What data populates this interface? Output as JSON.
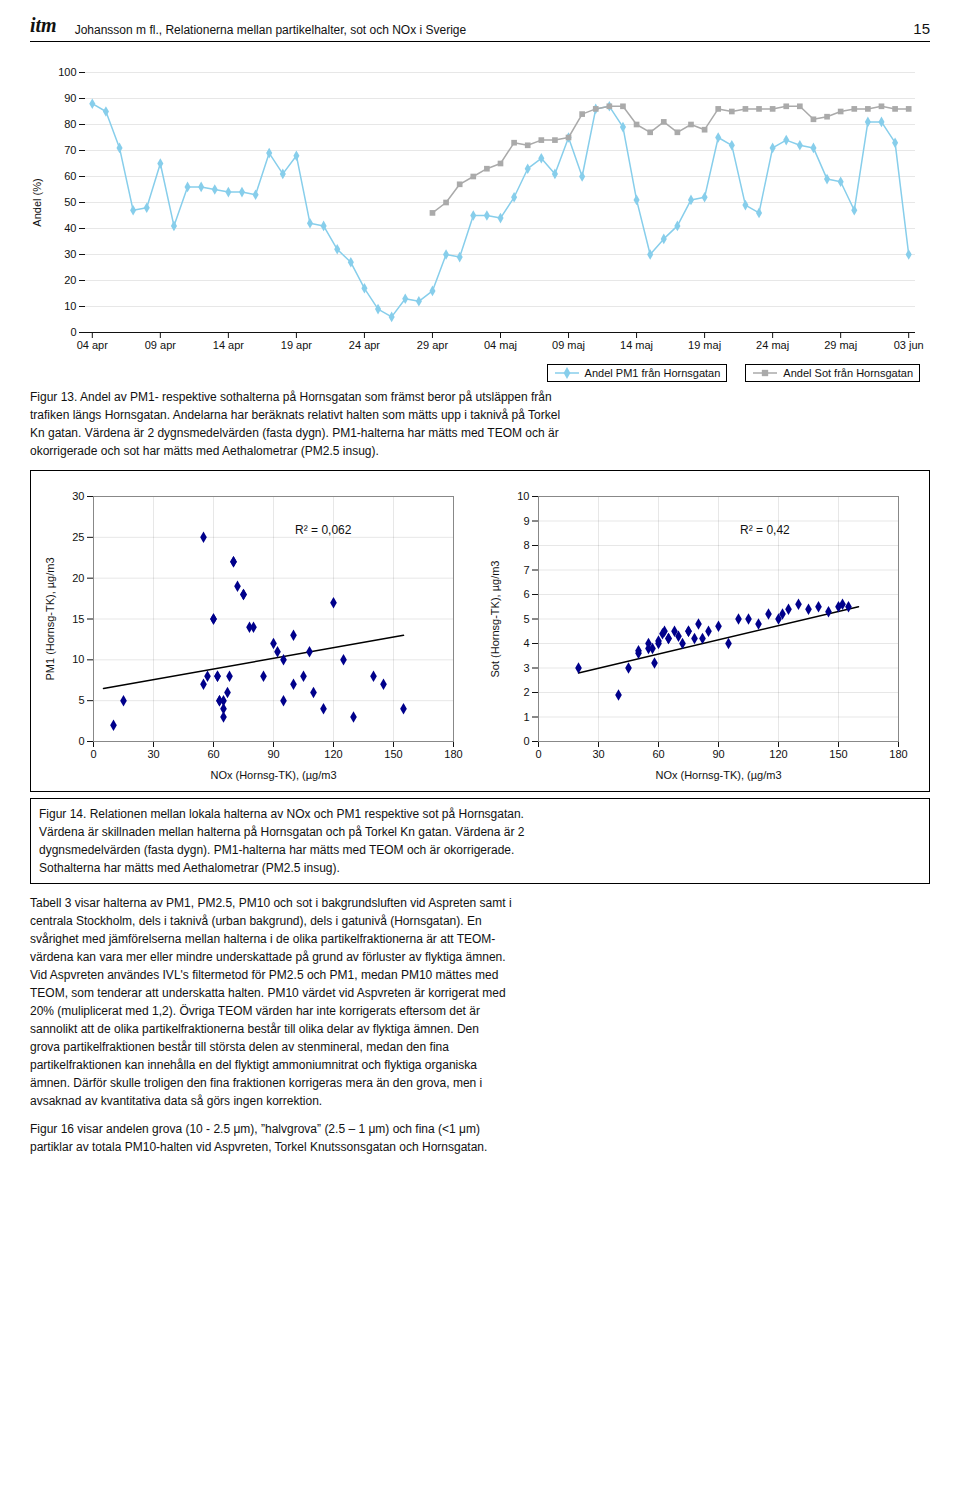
{
  "header": {
    "logo": "itm",
    "title": "Johansson m fl., Relationerna mellan partikelhalter, sot och NOx i Sverige",
    "page_number": "15"
  },
  "chart_data": [
    {
      "type": "line",
      "ylabel": "Andel (%)",
      "ylim": [
        0,
        100
      ],
      "yticks": [
        0,
        10,
        20,
        30,
        40,
        50,
        60,
        70,
        80,
        90,
        100
      ],
      "grid": "y",
      "legend": "lower right",
      "categories": [
        "04 apr",
        null,
        null,
        null,
        null,
        "09 apr",
        null,
        null,
        null,
        null,
        "14 apr",
        null,
        null,
        null,
        null,
        "19 apr",
        null,
        null,
        null,
        null,
        "24 apr",
        null,
        null,
        null,
        null,
        "29 apr",
        null,
        null,
        null,
        null,
        "04 maj",
        null,
        null,
        null,
        null,
        "09 maj",
        null,
        null,
        null,
        null,
        "14 maj",
        null,
        null,
        null,
        null,
        "19 maj",
        null,
        null,
        null,
        null,
        "24 maj",
        null,
        null,
        null,
        null,
        "29 maj",
        null,
        null,
        null,
        null,
        "03 jun"
      ],
      "series": [
        {
          "name": "Andel PM1 från Hornsgatan",
          "color": "#87CEEB",
          "marker": "diamond",
          "values": [
            88,
            85,
            71,
            47,
            48,
            65,
            41,
            56,
            56,
            55,
            54,
            54,
            53,
            69,
            61,
            68,
            42,
            41,
            32,
            27,
            17,
            9,
            6,
            13,
            12,
            16,
            30,
            29,
            45,
            45,
            44,
            52,
            63,
            67,
            61,
            75,
            60,
            86,
            87,
            79,
            51,
            30,
            36,
            41,
            51,
            52,
            75,
            72,
            49,
            46,
            71,
            74,
            72,
            71,
            59,
            58,
            47,
            81,
            81,
            73,
            30
          ]
        },
        {
          "name": "Andel Sot från Hornsgatan",
          "color": "#AAAAAA",
          "marker": "square",
          "values": [
            null,
            null,
            null,
            null,
            null,
            null,
            null,
            null,
            null,
            null,
            null,
            null,
            null,
            null,
            null,
            null,
            null,
            null,
            null,
            null,
            null,
            null,
            null,
            null,
            null,
            46,
            50,
            57,
            60,
            63,
            65,
            73,
            72,
            74,
            74,
            75,
            84,
            86,
            87,
            87,
            80,
            77,
            81,
            77,
            80,
            78,
            86,
            85,
            86,
            86,
            86,
            87,
            87,
            82,
            83,
            85,
            86,
            86,
            87,
            86,
            86
          ]
        }
      ]
    },
    {
      "type": "scatter",
      "xlabel": "NOx (Hornsg-TK), (µg/m3",
      "ylabel": "PM1 (Hornsg-TK), µg/m3",
      "xlim": [
        0,
        180
      ],
      "ylim": [
        0,
        30
      ],
      "xticks": [
        0,
        30,
        60,
        90,
        120,
        150,
        180
      ],
      "yticks": [
        0,
        5,
        10,
        15,
        20,
        25,
        30
      ],
      "grid": true,
      "color": "#00008B",
      "marker": "diamond",
      "annotation": "R² = 0,062",
      "x": [
        10,
        15,
        55,
        55,
        57,
        60,
        60,
        62,
        62,
        63,
        63,
        65,
        65,
        65,
        67,
        68,
        70,
        70,
        72,
        75,
        75,
        78,
        80,
        85,
        90,
        92,
        95,
        95,
        100,
        100,
        105,
        108,
        110,
        115,
        120,
        125,
        130,
        140,
        145,
        155
      ],
      "values": [
        2,
        5,
        25,
        7,
        8,
        15,
        15,
        8,
        8,
        5,
        5,
        5,
        4,
        3,
        6,
        8,
        22,
        22,
        19,
        18,
        18,
        14,
        14,
        8,
        12,
        11,
        10,
        5,
        13,
        7,
        8,
        11,
        6,
        4,
        17,
        10,
        3,
        8,
        7,
        4
      ],
      "trendline": {
        "x": [
          5,
          155
        ],
        "values": [
          6.5,
          13.0
        ],
        "color": "black"
      }
    },
    {
      "type": "scatter",
      "xlabel": "NOx (Hornsg-TK), (µg/m3",
      "ylabel": "Sot (Hornsg-TK), µg/m3",
      "xlim": [
        0,
        180
      ],
      "ylim": [
        0,
        10
      ],
      "xticks": [
        0,
        30,
        60,
        90,
        120,
        150,
        180
      ],
      "yticks": [
        0,
        1,
        2,
        3,
        4,
        5,
        6,
        7,
        8,
        9,
        10
      ],
      "grid": true,
      "color": "#00008B",
      "marker": "diamond",
      "annotation": "R² = 0,42",
      "x": [
        20,
        40,
        45,
        50,
        50,
        55,
        55,
        57,
        58,
        60,
        60,
        62,
        63,
        65,
        65,
        68,
        70,
        72,
        75,
        75,
        78,
        80,
        82,
        85,
        90,
        95,
        100,
        105,
        110,
        115,
        120,
        122,
        125,
        130,
        135,
        140,
        145,
        150,
        152,
        155
      ],
      "values": [
        3.0,
        1.9,
        3.0,
        3.6,
        3.7,
        4.0,
        3.8,
        3.8,
        3.2,
        4.0,
        4.1,
        4.4,
        4.5,
        4.2,
        4.2,
        4.5,
        4.3,
        4.0,
        4.5,
        4.5,
        4.2,
        4.8,
        4.2,
        4.5,
        4.7,
        4.0,
        5.0,
        5.0,
        4.8,
        5.2,
        5.0,
        5.2,
        5.4,
        5.6,
        5.4,
        5.5,
        5.3,
        5.5,
        5.6,
        5.5
      ],
      "trendline": {
        "x": [
          20,
          160
        ],
        "values": [
          2.8,
          5.5
        ],
        "color": "black"
      }
    }
  ],
  "captions": [
    "Figur 13. Andel av PM1- respektive sothalterna på Hornsgatan som främst beror på utsläppen från\ntrafiken längs Hornsgatan. Andelarna har beräknats relativt halten som mätts upp i taknivå på Torkel\nKn gatan. Värdena är 2 dygnsmedelvärden (fasta dygn). PM1-halterna har mätts med TEOM och är\nokorrigerade och sot har mätts med Aethalometrar (PM2.5 insug).",
    "Figur 14. Relationen mellan lokala halterna av NOx och PM1 respektive sot på Hornsgatan.\nVärdena är skillnaden mellan halterna på Hornsgatan och på Torkel Kn gatan. Värdena är 2\ndygnsmedelvärden (fasta dygn). PM1-halterna har mätts med TEOM och är okorrigerade.\nSothalterna har mätts med Aethalometrar (PM2.5 insug)."
  ],
  "body_text": "Tabell 3 visar halterna av PM1, PM2.5, PM10 och sot i bakgrundsluften vid Aspreten samt i\ncentrala Stockholm, dels i taknivå (urban bakgrund), dels i gatunivå (Hornsgatan). En\nsvårighet med jämförelserna mellan halterna i de olika partikelfraktionerna är att TEOM-\nvärdena kan vara mer eller mindre underskattade på grund av förluster av flyktiga ämnen.\nVid Aspvreten användes IVL's filtermetod för PM2.5 och PM1, medan PM10 mättes med\nTEOM, som tenderar att underskatta halten. PM10 värdet vid Aspvreten är korrigerat med\n20% (muliplicerat med 1,2). Övriga TEOM värden har inte korrigerats eftersom det är\nsannolikt att de olika partikelfraktionerna består till olika delar av flyktiga ämnen. Den\ngrova partikelfraktionen består till största delen av stenmineral, medan den fina\npartikelfraktionen kan innehålla en del flyktigt ammoniumnitrat och flyktiga organiska\nämnen. Därför skulle troligen den fina fraktionen korrigeras mera än den grova, men i\navsaknad av kvantitativa data så görs ingen korrektion.",
  "footer_text": "Figur 16 visar andelen grova (10 - 2.5 μm), ”halvgrova” (2.5 – 1 μm) och fina (<1 μm)\npartiklar av totala PM10-halten vid Aspvreten, Torkel Knutssonsgatan och Hornsgatan."
}
